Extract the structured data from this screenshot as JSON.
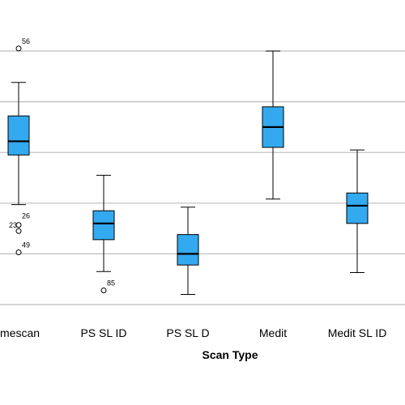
{
  "chart_data": {
    "type": "boxplot",
    "xlabel": "Scan Type",
    "ylabel": "",
    "ylim": [
      0,
      6
    ],
    "gridlines": [
      0,
      1,
      2,
      3,
      4,
      5
    ],
    "grid": true,
    "legend": "none",
    "colors": {
      "box": "#33aaf0",
      "line": "#000000",
      "grid": "#bdbdbd"
    },
    "categories": [
      "Primescan",
      "PS SL ID",
      "PS SL D",
      "Medit",
      "Medit SL ID"
    ],
    "boxes": [
      {
        "name": "Primescan",
        "label": "imescan",
        "whisker_low": 1.97,
        "q1": 2.95,
        "median": 3.22,
        "q3": 3.72,
        "whisker_high": 4.38,
        "outliers": [
          {
            "y": 5.05,
            "label": "56"
          },
          {
            "y": 1.57,
            "label": "26"
          },
          {
            "y": 1.45,
            "label": "23"
          },
          {
            "y": 1.03,
            "label": "49"
          }
        ]
      },
      {
        "name": "PS SL ID",
        "label": "PS SL ID",
        "whisker_low": 0.65,
        "q1": 1.28,
        "median": 1.6,
        "q3": 1.85,
        "whisker_high": 2.55,
        "outliers": [
          {
            "y": 0.28,
            "label": "85"
          }
        ]
      },
      {
        "name": "PS SL D",
        "label": "PS SL D",
        "whisker_low": 0.2,
        "q1": 0.78,
        "median": 1.0,
        "q3": 1.38,
        "whisker_high": 1.92,
        "outliers": []
      },
      {
        "name": "Medit",
        "label": "Medit",
        "whisker_low": 2.08,
        "q1": 3.1,
        "median": 3.5,
        "q3": 3.9,
        "whisker_high": 5.0,
        "outliers": []
      },
      {
        "name": "Medit SL ID",
        "label": "Medit SL ID",
        "whisker_low": 0.63,
        "q1": 1.6,
        "median": 1.95,
        "q3": 2.2,
        "whisker_high": 3.05,
        "outliers": []
      }
    ]
  }
}
